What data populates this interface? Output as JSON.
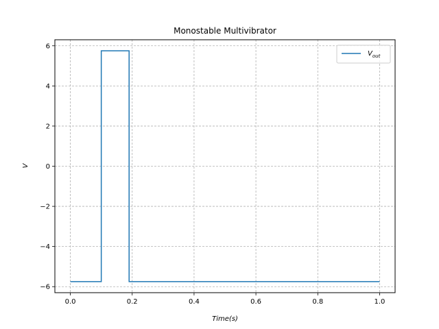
{
  "chart_data": {
    "type": "line",
    "title": "Monostable Multivibrator",
    "xlabel": "Time(s)",
    "ylabel": "V",
    "xlim": [
      -0.05,
      1.05
    ],
    "ylim": [
      -6.3,
      6.3
    ],
    "x_ticks": [
      0.0,
      0.2,
      0.4,
      0.6,
      0.8,
      1.0
    ],
    "x_tick_labels": [
      "0.0",
      "0.2",
      "0.4",
      "0.6",
      "0.8",
      "1.0"
    ],
    "y_ticks": [
      -6,
      -4,
      -2,
      0,
      2,
      4,
      6
    ],
    "y_tick_labels": [
      "−6",
      "−4",
      "−2",
      "0",
      "2",
      "4",
      "6"
    ],
    "grid": true,
    "legend_position": "top-right",
    "series": [
      {
        "name": "V",
        "name_subscript": "out",
        "color": "#1f77b4",
        "x": [
          0.0,
          0.1,
          0.1,
          0.19,
          0.19,
          1.0
        ],
        "y": [
          -5.75,
          -5.75,
          5.75,
          5.75,
          -5.75,
          -5.75
        ]
      }
    ]
  }
}
